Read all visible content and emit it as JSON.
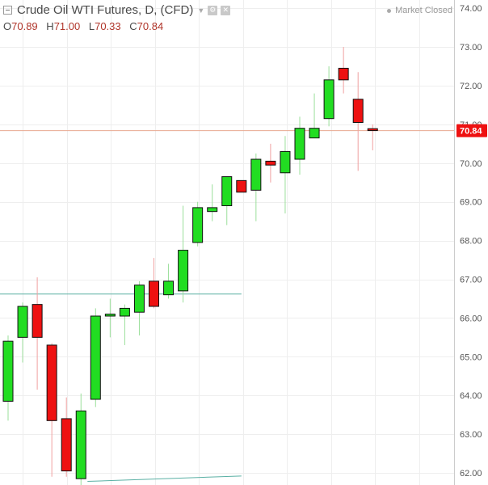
{
  "header": {
    "title": "Crude Oil WTI Futures, D, (CFD)",
    "ohlc": [
      {
        "key": "O",
        "value": "70.89"
      },
      {
        "key": "H",
        "value": "71.00"
      },
      {
        "key": "L",
        "value": "70.33"
      },
      {
        "key": "C",
        "value": "70.84"
      }
    ],
    "status": "Market Closed",
    "icons": [
      "collapse-icon",
      "dropdown-caret-icon",
      "settings-icon",
      "close-icon"
    ]
  },
  "colors": {
    "up": "#22dd22",
    "down": "#ee1111",
    "grid": "#eeeeee",
    "price_line": "#e8a890",
    "price_tag": "#ee1111",
    "trendline": "#5ab0a4"
  },
  "current_price_label": "70.84",
  "chart_data": {
    "type": "candlestick",
    "ylim": [
      61.8,
      74.3
    ],
    "y_ticks": [
      "62.00",
      "63.00",
      "64.00",
      "65.00",
      "66.00",
      "67.00",
      "68.00",
      "69.00",
      "70.00",
      "71.00",
      "72.00",
      "73.00",
      "74.00"
    ],
    "grid": true,
    "current_price": 70.84,
    "candles": [
      {
        "o": 63.85,
        "h": 65.55,
        "l": 63.35,
        "c": 65.4
      },
      {
        "o": 65.5,
        "h": 66.4,
        "l": 64.85,
        "c": 66.3
      },
      {
        "o": 66.35,
        "h": 67.05,
        "l": 64.15,
        "c": 65.5
      },
      {
        "o": 65.3,
        "h": 65.35,
        "l": 61.9,
        "c": 63.35
      },
      {
        "o": 63.4,
        "h": 63.95,
        "l": 61.9,
        "c": 62.05
      },
      {
        "o": 61.85,
        "h": 64.05,
        "l": 61.55,
        "c": 63.6
      },
      {
        "o": 63.9,
        "h": 66.25,
        "l": 63.7,
        "c": 66.05
      },
      {
        "o": 66.05,
        "h": 66.5,
        "l": 65.5,
        "c": 66.1
      },
      {
        "o": 66.05,
        "h": 66.35,
        "l": 65.3,
        "c": 66.25
      },
      {
        "o": 66.15,
        "h": 66.95,
        "l": 65.55,
        "c": 66.85
      },
      {
        "o": 66.95,
        "h": 67.55,
        "l": 66.25,
        "c": 66.3
      },
      {
        "o": 66.6,
        "h": 67.4,
        "l": 66.5,
        "c": 66.95
      },
      {
        "o": 66.7,
        "h": 68.9,
        "l": 66.4,
        "c": 67.75
      },
      {
        "o": 67.95,
        "h": 69.0,
        "l": 67.85,
        "c": 68.85
      },
      {
        "o": 68.75,
        "h": 69.45,
        "l": 68.5,
        "c": 68.85
      },
      {
        "o": 68.9,
        "h": 69.65,
        "l": 68.4,
        "c": 69.65
      },
      {
        "o": 69.55,
        "h": 69.55,
        "l": 69.25,
        "c": 69.25
      },
      {
        "o": 69.3,
        "h": 70.25,
        "l": 68.5,
        "c": 70.1
      },
      {
        "o": 70.05,
        "h": 70.5,
        "l": 69.5,
        "c": 69.95
      },
      {
        "o": 69.75,
        "h": 70.7,
        "l": 68.7,
        "c": 70.3
      },
      {
        "o": 70.1,
        "h": 71.2,
        "l": 69.7,
        "c": 70.9
      },
      {
        "o": 70.65,
        "h": 71.8,
        "l": 70.65,
        "c": 70.9
      },
      {
        "o": 71.15,
        "h": 72.5,
        "l": 70.95,
        "c": 72.15
      },
      {
        "o": 72.45,
        "h": 73.0,
        "l": 71.8,
        "c": 72.15
      },
      {
        "o": 71.65,
        "h": 72.35,
        "l": 69.8,
        "c": 71.05
      },
      {
        "o": 70.89,
        "h": 71.0,
        "l": 70.33,
        "c": 70.84
      }
    ],
    "lines": [
      {
        "x1": 0,
        "y1": 66.62,
        "x2": 16,
        "y2": 66.62
      },
      {
        "x1": 6,
        "y1": 61.78,
        "x2": 16,
        "y2": 61.92
      }
    ]
  }
}
